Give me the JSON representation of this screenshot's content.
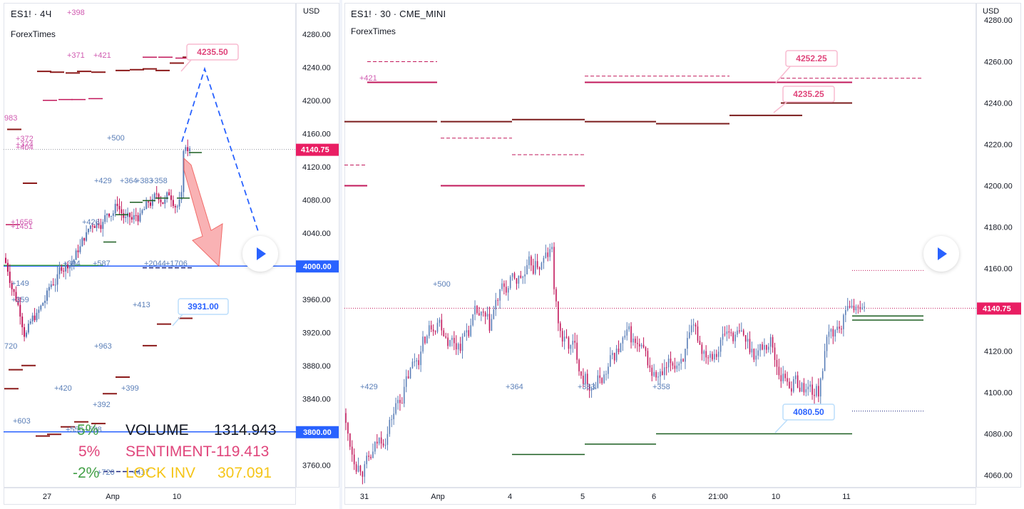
{
  "left_chart": {
    "symbol_title": "ES1! · 4Ч",
    "source": "ForexTimes",
    "price_unit": "USD",
    "price_axis_labels": [
      "4280.00",
      "4240.00",
      "4200.00",
      "4160.00",
      "4120.00",
      "4080.00",
      "4040.00",
      "3960.00",
      "3920.00",
      "3880.00",
      "3840.00",
      "3760.00"
    ],
    "time_axis_labels": [
      "27",
      "Апр",
      "10"
    ],
    "last_price_badge": "4140.75",
    "level_badges": [
      {
        "text": "4000.00",
        "color": "#2962ff"
      },
      {
        "text": "3800.00",
        "color": "#2962ff"
      }
    ],
    "callouts": [
      {
        "text": "4235.50",
        "color": "#e0457b"
      },
      {
        "text": "3931.00",
        "color": "#2962ff"
      }
    ],
    "annotations_pink": [
      "+398",
      "+371",
      "+421",
      "983",
      "+372",
      "+374",
      "+404",
      "+1656",
      "+1451"
    ],
    "annotations_blue": [
      "+500",
      "+429",
      "+364",
      "+383",
      "+358",
      "+426",
      "+394",
      "+587",
      "+2044",
      "+1706",
      "+413",
      "+359",
      "+149",
      "720",
      "+963",
      "+420",
      "+399",
      "+392",
      "+603",
      "+556",
      "+588",
      "+720",
      "+417"
    ],
    "stats": [
      {
        "pct": "5%",
        "pct_color": "#43a047",
        "label": "VOLUME",
        "label_color": "#131722",
        "value": "1314.943",
        "value_color": "#131722"
      },
      {
        "pct": "5%",
        "pct_color": "#e0457b",
        "label": "SENTIMENT",
        "label_color": "#e0457b",
        "value": "-119.413",
        "value_color": "#e0457b"
      },
      {
        "pct": "-2%",
        "pct_color": "#43a047",
        "label": "LOCK INV",
        "label_color": "#f5c518",
        "value": "307.091",
        "value_color": "#f5c518"
      }
    ]
  },
  "right_chart": {
    "symbol_title": "ES1! · 30 · CME_MINI",
    "source": "ForexTimes",
    "price_unit": "USD",
    "price_axis_labels": [
      "4280.00",
      "4260.00",
      "4240.00",
      "4220.00",
      "4200.00",
      "4180.00",
      "4160.00",
      "4120.00",
      "4100.00",
      "4080.00",
      "4060.00"
    ],
    "time_axis_labels": [
      "31",
      "Апр",
      "4",
      "5",
      "6",
      "21:00",
      "10",
      "11"
    ],
    "last_price_badge": "4140.75",
    "callouts": [
      {
        "text": "4252.25",
        "color": "#e0457b"
      },
      {
        "text": "4235.25",
        "color": "#e0457b"
      },
      {
        "text": "4080.50",
        "color": "#2962ff"
      }
    ],
    "annotations_blue": [
      "+421",
      "+500",
      "+429",
      "+364",
      "+383",
      "+358"
    ]
  },
  "chart_data": [
    {
      "type": "candlestick",
      "title": "ES1! · 4Ч",
      "ylabel": "USD",
      "ylim": [
        3730,
        4310
      ],
      "x": [
        "27",
        "Апр",
        "10"
      ],
      "last_price": 4140.75,
      "levels": [
        4000.0,
        3800.0
      ],
      "targets": [
        4235.5,
        3931.0
      ],
      "grid": false
    },
    {
      "type": "candlestick",
      "title": "ES1! · 30 · CME_MINI",
      "ylabel": "USD",
      "ylim": [
        4055,
        4285
      ],
      "x": [
        "31",
        "Апр",
        "4",
        "5",
        "6",
        "21:00",
        "10",
        "11"
      ],
      "last_price": 4140.75,
      "targets": [
        4252.25,
        4235.25,
        4080.5
      ],
      "grid": false
    }
  ]
}
